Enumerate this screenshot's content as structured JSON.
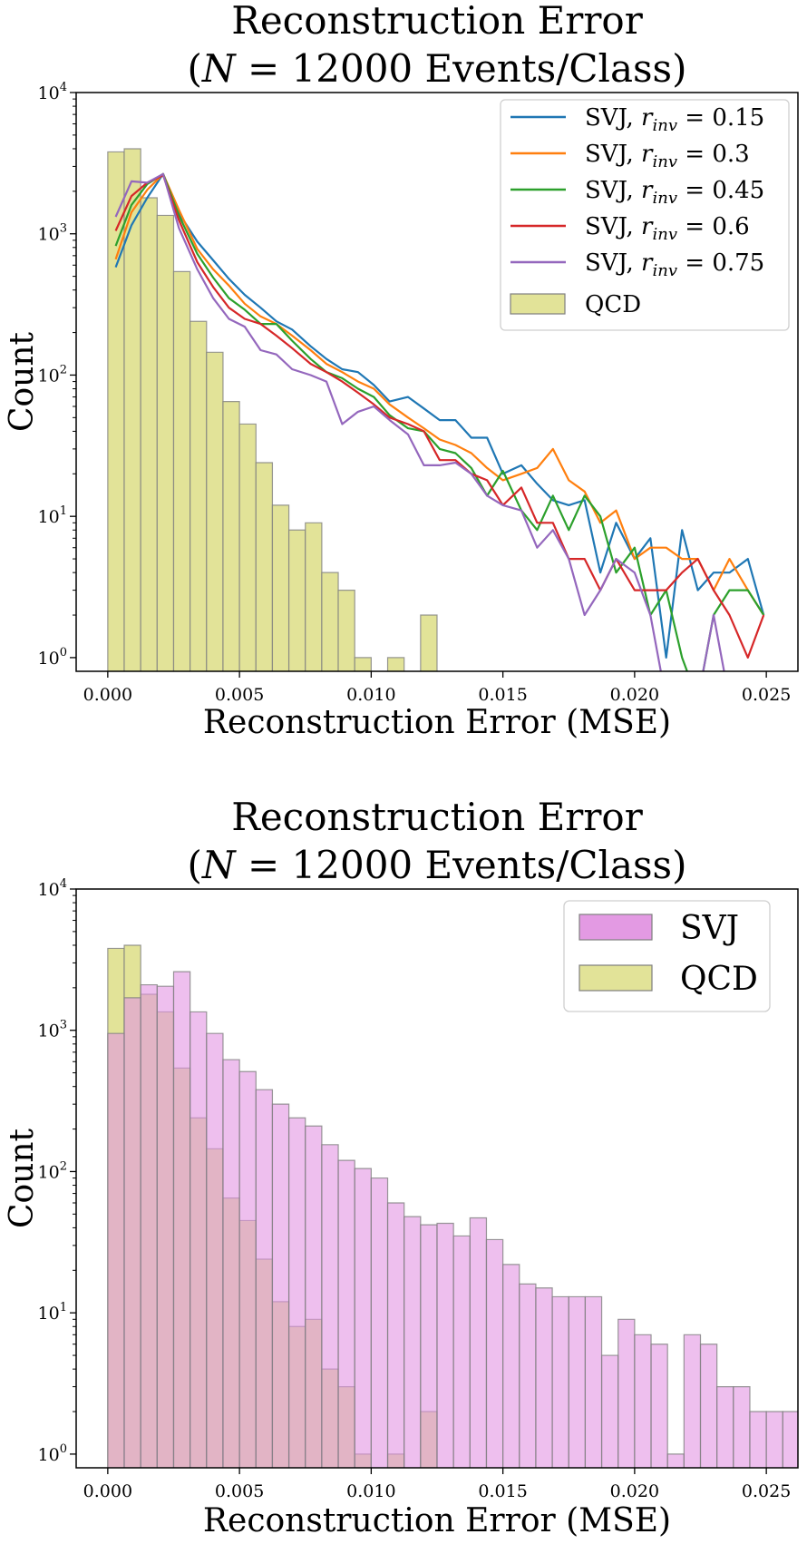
{
  "chart_data": [
    {
      "type": "histogram+line",
      "title": [
        "Reconstruction Error",
        "(N = 12000 Events/Class)"
      ],
      "xlabel": "Reconstruction Error (MSE)",
      "ylabel": "Count",
      "xlim": [
        -0.0012,
        0.0262
      ],
      "ylim": [
        0.8,
        10000
      ],
      "yscale": "log",
      "xticks": [
        "0.000",
        "0.005",
        "0.010",
        "0.015",
        "0.020",
        "0.025"
      ],
      "yticks": [
        "10^0",
        "10^1",
        "10^2",
        "10^3",
        "10^4"
      ],
      "legend_placement": "top-right",
      "grid": false,
      "series_x": [
        0.0003,
        0.0009,
        0.0015,
        0.0021,
        0.0027,
        0.0034,
        0.004,
        0.0046,
        0.0052,
        0.0058,
        0.0064,
        0.007,
        0.0077,
        0.0083,
        0.0089,
        0.0095,
        0.0101,
        0.0107,
        0.0114,
        0.012,
        0.0126,
        0.0132,
        0.0138,
        0.0144,
        0.015,
        0.0157,
        0.0163,
        0.0169,
        0.0175,
        0.0181,
        0.0187,
        0.0193,
        0.02,
        0.0206,
        0.0212,
        0.0218,
        0.0224,
        0.023,
        0.0236,
        0.0243,
        0.0249
      ],
      "series": [
        {
          "name": "SVJ, r_inv = 0.15",
          "color": "#1f77b4",
          "values": [
            580,
            1150,
            1800,
            2650,
            1400,
            880,
            650,
            480,
            370,
            300,
            240,
            210,
            160,
            130,
            110,
            105,
            85,
            65,
            70,
            58,
            48,
            48,
            36,
            36,
            20,
            23,
            17,
            13,
            12,
            13,
            4,
            9,
            5,
            7,
            1,
            8,
            3,
            4,
            4,
            5,
            2
          ]
        },
        {
          "name": "SVJ, r_inv = 0.3",
          "color": "#ff7f0e",
          "values": [
            660,
            1420,
            2050,
            2650,
            1480,
            780,
            560,
            430,
            320,
            260,
            230,
            190,
            150,
            120,
            105,
            90,
            80,
            62,
            50,
            42,
            35,
            32,
            28,
            22,
            18,
            20,
            22,
            30,
            18,
            15,
            9,
            11,
            5,
            6,
            6,
            5,
            5,
            3,
            5,
            3,
            2
          ]
        },
        {
          "name": "SVJ, r_inv = 0.45",
          "color": "#2ca02c",
          "values": [
            820,
            1600,
            2250,
            2650,
            1350,
            720,
            490,
            350,
            290,
            230,
            230,
            175,
            130,
            105,
            95,
            80,
            70,
            52,
            42,
            40,
            30,
            28,
            22,
            14,
            21,
            11,
            8,
            14,
            8,
            14,
            10,
            4,
            6,
            2,
            3,
            1,
            0.5,
            2,
            3,
            3,
            2
          ]
        },
        {
          "name": "SVJ, r_inv = 0.6",
          "color": "#d62728",
          "values": [
            1050,
            1850,
            2300,
            2600,
            1250,
            630,
            420,
            300,
            250,
            230,
            190,
            155,
            120,
            105,
            90,
            75,
            62,
            50,
            45,
            40,
            25,
            25,
            20,
            18,
            12,
            16,
            9,
            9,
            5,
            5,
            3,
            5,
            3,
            3,
            3,
            4,
            5,
            3,
            2,
            1,
            2
          ]
        },
        {
          "name": "SVJ, r_inv = 0.75",
          "color": "#9467bd",
          "values": [
            1320,
            2350,
            2300,
            2650,
            1100,
            560,
            350,
            250,
            220,
            150,
            140,
            110,
            100,
            90,
            45,
            55,
            60,
            48,
            38,
            23,
            23,
            24,
            20,
            14,
            12,
            11,
            6,
            8,
            5,
            2,
            3,
            5,
            4,
            2,
            0.5,
            0.5,
            0.5,
            2,
            0.5,
            0.5,
            0.5
          ]
        }
      ],
      "qcd": {
        "name": "QCD",
        "color": "#e2e398",
        "bin_edges_start": 0.0,
        "bin_width": 0.000625,
        "values": [
          3800,
          4000,
          1800,
          1350,
          540,
          240,
          145,
          65,
          45,
          24,
          12,
          8,
          9,
          4,
          3,
          1,
          0,
          1,
          0,
          2
        ]
      }
    },
    {
      "type": "histogram",
      "title": [
        "Reconstruction Error",
        "(N = 12000 Events/Class)"
      ],
      "xlabel": "Reconstruction Error (MSE)",
      "ylabel": "Count",
      "xlim": [
        -0.0012,
        0.0262
      ],
      "ylim": [
        0.8,
        10000
      ],
      "yscale": "log",
      "xticks": [
        "0.000",
        "0.005",
        "0.010",
        "0.015",
        "0.020",
        "0.025"
      ],
      "yticks": [
        "10^0",
        "10^1",
        "10^2",
        "10^3",
        "10^4"
      ],
      "legend_placement": "top-right",
      "grid": false,
      "bin_width": 0.000625,
      "series": [
        {
          "name": "SVJ",
          "color": "#e295e2",
          "values": [
            950,
            1700,
            2100,
            2050,
            2600,
            1350,
            950,
            620,
            510,
            380,
            300,
            240,
            210,
            155,
            120,
            105,
            90,
            60,
            48,
            42,
            43,
            35,
            47,
            33,
            22,
            16,
            15,
            13,
            13,
            13,
            5,
            9,
            7,
            6,
            1,
            7,
            6,
            3,
            3,
            2,
            2,
            2
          ]
        },
        {
          "name": "QCD",
          "color": "#e2e398",
          "values": [
            3800,
            4000,
            1800,
            1350,
            540,
            240,
            145,
            65,
            45,
            24,
            12,
            8,
            9,
            4,
            3,
            1,
            0,
            1,
            0,
            2
          ]
        }
      ]
    }
  ]
}
